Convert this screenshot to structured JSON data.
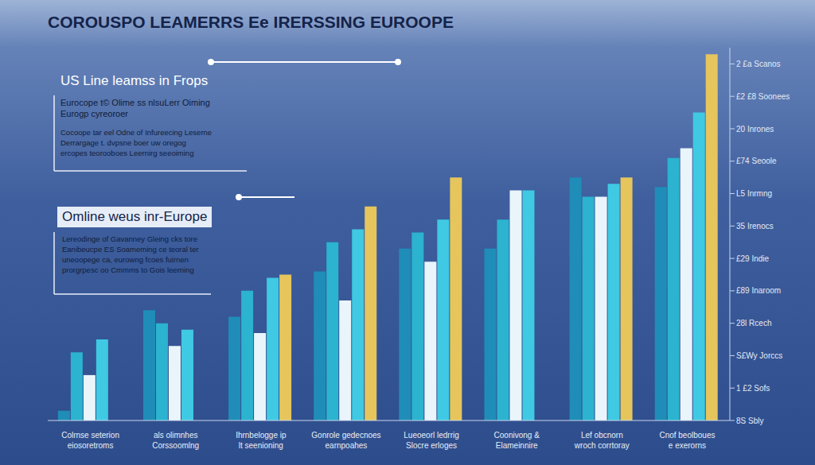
{
  "chart_data": {
    "type": "bar",
    "title": "COROUSPO LEAMERRS Ee IRERSSING EUROOPE",
    "annotations": [
      {
        "title": "US Line leamss in Frops",
        "subtitle": [
          "Eurocope t© Olime ss nlsuLerr Oiming",
          "Eurogp cyreoroer"
        ],
        "text": [
          "Cocoope tar eel Odne of Infureecing Leserne",
          "Derrargage t. dvpsne boer uw oregog",
          "ercopes teorooboes Leernirg seeoiming"
        ]
      },
      {
        "title": "Omline weus inr-Europe",
        "text": [
          "Lereodinge of Gavanney Gleing cks tore",
          "Eanibeucpe ES Soameming ce teoral ter",
          "uneoopege ca, eurowng fcoes fuirnen",
          "prorgrpesc oo Cmmms to Gois leerning"
        ]
      }
    ],
    "categories": [
      "Colrnse seterion eiosoretroms",
      "als olimnhes Corssoomlng",
      "Ihrnbelogge ip lt seenioning",
      "Gonrole gedecnoes earnpoahes",
      "Lueoeorl ledrrig Slocre erloges",
      "Coonivong & Elameinnire",
      "Lef obcnorn wroch corrtoray",
      "Cnof beolboues e exerorns"
    ],
    "series": [
      {
        "color": "#1f8db8",
        "values": [
          0.3,
          3.4,
          3.2,
          4.6,
          5.3,
          5.3,
          7.5,
          7.2
        ]
      },
      {
        "color": "#2bb3cf",
        "values": [
          2.1,
          3.0,
          4.0,
          5.5,
          5.8,
          6.2,
          6.9,
          8.1
        ]
      },
      {
        "color": "#e9f5fb",
        "values": [
          1.4,
          2.3,
          2.7,
          3.7,
          4.9,
          7.1,
          6.9,
          8.4
        ]
      },
      {
        "color": "#3fc9e2",
        "values": [
          2.5,
          2.8,
          4.4,
          5.9,
          6.2,
          7.1,
          7.3,
          9.5
        ]
      },
      {
        "color": "#e5c55c",
        "values": [
          null,
          null,
          4.5,
          6.6,
          7.5,
          null,
          7.5,
          11.3
        ]
      }
    ],
    "ylim": [
      0,
      11.5
    ],
    "yticks": [
      {
        "value": 0,
        "label": "8S Sbly"
      },
      {
        "value": 1,
        "label": "1 £2 Sofs"
      },
      {
        "value": 2,
        "label": "S£Wy Jorccs"
      },
      {
        "value": 3,
        "label": "28l Rcech"
      },
      {
        "value": 4,
        "label": "£89 Inaroom"
      },
      {
        "value": 5,
        "label": "£29 Indie"
      },
      {
        "value": 6,
        "label": "35 Irenocs"
      },
      {
        "value": 7,
        "label": "L5 Inrmng"
      },
      {
        "value": 8,
        "label": "£74 Seoole"
      },
      {
        "value": 9,
        "label": "20 Inrones"
      },
      {
        "value": 10,
        "label": "£2 £8 Soonees"
      },
      {
        "value": 11,
        "label": "2 £a Scanos"
      }
    ],
    "grid": false
  }
}
